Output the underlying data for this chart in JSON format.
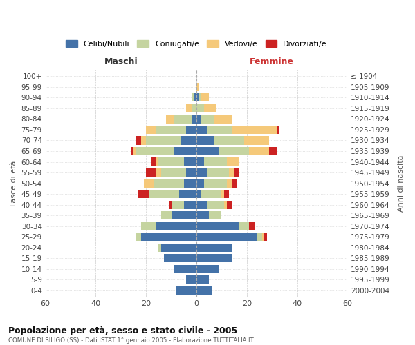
{
  "age_groups": [
    "0-4",
    "5-9",
    "10-14",
    "15-19",
    "20-24",
    "25-29",
    "30-34",
    "35-39",
    "40-44",
    "45-49",
    "50-54",
    "55-59",
    "60-64",
    "65-69",
    "70-74",
    "75-79",
    "80-84",
    "85-89",
    "90-94",
    "95-99",
    "100+"
  ],
  "birth_years": [
    "2000-2004",
    "1995-1999",
    "1990-1994",
    "1985-1989",
    "1980-1984",
    "1975-1979",
    "1970-1974",
    "1965-1969",
    "1960-1964",
    "1955-1959",
    "1950-1954",
    "1945-1949",
    "1940-1944",
    "1935-1939",
    "1930-1934",
    "1925-1929",
    "1920-1924",
    "1915-1919",
    "1910-1914",
    "1905-1909",
    "≤ 1904"
  ],
  "maschi": {
    "celibi": [
      8,
      4,
      9,
      13,
      14,
      22,
      16,
      10,
      5,
      7,
      5,
      4,
      5,
      9,
      6,
      4,
      2,
      0,
      1,
      0,
      0
    ],
    "coniugati": [
      0,
      0,
      0,
      0,
      1,
      2,
      6,
      4,
      5,
      12,
      12,
      10,
      10,
      15,
      14,
      12,
      7,
      2,
      1,
      0,
      0
    ],
    "vedovi": [
      0,
      0,
      0,
      0,
      0,
      0,
      0,
      0,
      0,
      0,
      4,
      2,
      1,
      1,
      2,
      4,
      3,
      2,
      0,
      0,
      0
    ],
    "divorziati": [
      0,
      0,
      0,
      0,
      0,
      0,
      0,
      0,
      1,
      4,
      0,
      4,
      2,
      1,
      2,
      0,
      0,
      0,
      0,
      0,
      0
    ]
  },
  "femmine": {
    "celibi": [
      6,
      5,
      9,
      14,
      14,
      24,
      17,
      5,
      4,
      2,
      3,
      4,
      3,
      9,
      7,
      4,
      2,
      0,
      1,
      0,
      0
    ],
    "coniugati": [
      0,
      0,
      0,
      0,
      0,
      2,
      4,
      5,
      7,
      8,
      9,
      9,
      9,
      12,
      12,
      10,
      5,
      3,
      1,
      0,
      0
    ],
    "vedovi": [
      0,
      0,
      0,
      0,
      0,
      1,
      0,
      0,
      1,
      1,
      2,
      2,
      5,
      8,
      10,
      18,
      7,
      5,
      3,
      1,
      0
    ],
    "divorziati": [
      0,
      0,
      0,
      0,
      0,
      1,
      2,
      0,
      2,
      2,
      2,
      2,
      0,
      3,
      0,
      1,
      0,
      0,
      0,
      0,
      0
    ]
  },
  "colors": {
    "celibi": "#4472a8",
    "coniugati": "#c5d4a0",
    "vedovi": "#f5c97a",
    "divorziati": "#cc2222"
  },
  "legend_labels": [
    "Celibi/Nubili",
    "Coniugati/e",
    "Vedovi/e",
    "Divorziati/e"
  ],
  "title": "Popolazione per età, sesso e stato civile - 2005",
  "subtitle": "COMUNE DI SILIGO (SS) - Dati ISTAT 1° gennaio 2005 - Elaborazione TUTTITALIA.IT",
  "xlabel_left": "Maschi",
  "xlabel_right": "Femmine",
  "ylabel_left": "Fasce di età",
  "ylabel_right": "Anni di nascita",
  "xlim": 60,
  "background_color": "#ffffff",
  "grid_color": "#cccccc"
}
